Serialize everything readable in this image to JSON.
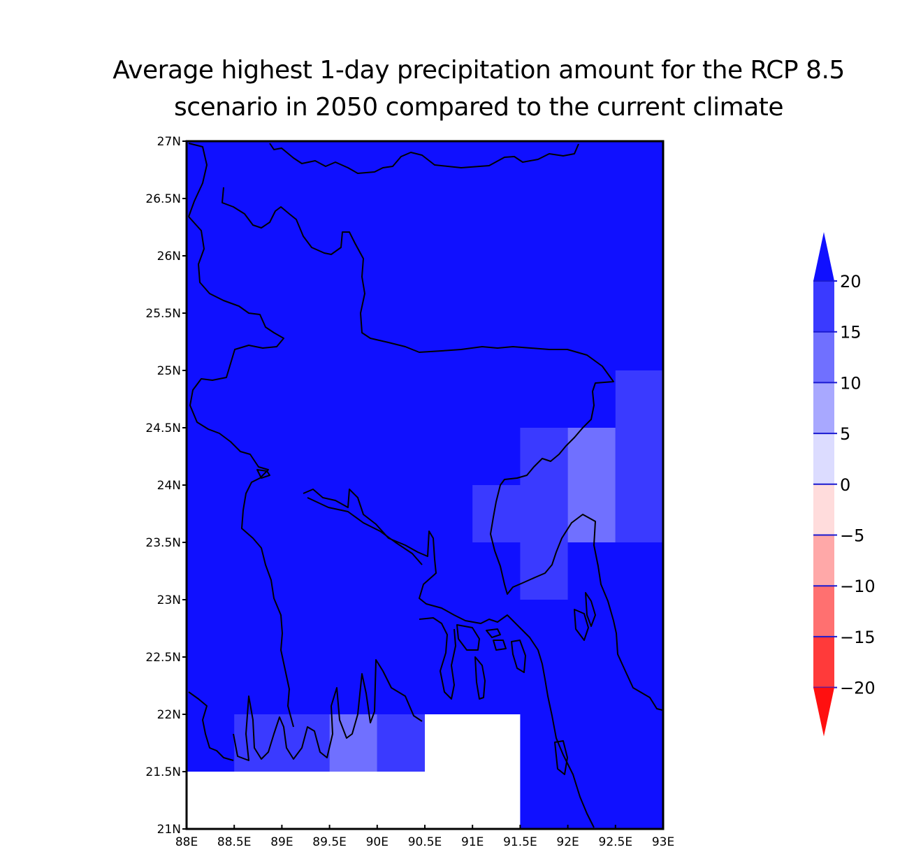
{
  "title": {
    "line1": "Average highest 1-day precipitation amount for the RCP 8.5",
    "line2": "scenario in 2050 compared to the current climate"
  },
  "map": {
    "lon_range": [
      88,
      93
    ],
    "lat_range": [
      21,
      27
    ],
    "x_ticks": [
      {
        "value": 88,
        "label": "88E"
      },
      {
        "value": 88.5,
        "label": "88.5E"
      },
      {
        "value": 89,
        "label": "89E"
      },
      {
        "value": 89.5,
        "label": "89.5E"
      },
      {
        "value": 90,
        "label": "90E"
      },
      {
        "value": 90.5,
        "label": "90.5E"
      },
      {
        "value": 91,
        "label": "91E"
      },
      {
        "value": 91.5,
        "label": "91.5E"
      },
      {
        "value": 92,
        "label": "92E"
      },
      {
        "value": 92.5,
        "label": "92.5E"
      },
      {
        "value": 93,
        "label": "93E"
      }
    ],
    "y_ticks": [
      {
        "value": 21,
        "label": "21N"
      },
      {
        "value": 21.5,
        "label": "21.5N"
      },
      {
        "value": 22,
        "label": "22N"
      },
      {
        "value": 22.5,
        "label": "22.5N"
      },
      {
        "value": 23,
        "label": "23N"
      },
      {
        "value": 23.5,
        "label": "23.5N"
      },
      {
        "value": 24,
        "label": "24N"
      },
      {
        "value": 24.5,
        "label": "24.5N"
      },
      {
        "value": 25,
        "label": "25N"
      },
      {
        "value": 25.5,
        "label": "25.5N"
      },
      {
        "value": 26,
        "label": "26N"
      },
      {
        "value": 26.5,
        "label": "26.5N"
      },
      {
        "value": 27,
        "label": "27N"
      }
    ],
    "background_class": "above-20",
    "cells": [
      {
        "lon": [
          88.5,
          89.5
        ],
        "lat": [
          21.5,
          22
        ],
        "class": "15-20"
      },
      {
        "lon": [
          89.5,
          90
        ],
        "lat": [
          21.5,
          22
        ],
        "class": "10-15"
      },
      {
        "lon": [
          90,
          90.5
        ],
        "lat": [
          21.5,
          22
        ],
        "class": "15-20"
      },
      {
        "lon": [
          88,
          90.5
        ],
        "lat": [
          21,
          21.5
        ],
        "class": "missing"
      },
      {
        "lon": [
          90.5,
          91.5
        ],
        "lat": [
          21,
          22
        ],
        "class": "missing"
      },
      {
        "lon": [
          91,
          92
        ],
        "lat": [
          23.5,
          24
        ],
        "class": "15-20"
      },
      {
        "lon": [
          91.5,
          92
        ],
        "lat": [
          23,
          23.5
        ],
        "class": "15-20"
      },
      {
        "lon": [
          91.5,
          92
        ],
        "lat": [
          24,
          24.5
        ],
        "class": "15-20"
      },
      {
        "lon": [
          92,
          92.5
        ],
        "lat": [
          23.5,
          24.5
        ],
        "class": "10-15"
      },
      {
        "lon": [
          92.5,
          93
        ],
        "lat": [
          23.5,
          25
        ],
        "class": "15-20"
      }
    ]
  },
  "legend": {
    "levels": [
      {
        "label": "20",
        "color": "#1010ff"
      },
      {
        "label": "15",
        "color": "#3a3aff"
      },
      {
        "label": "10",
        "color": "#7070ff"
      },
      {
        "label": "5",
        "color": "#a8a8ff"
      },
      {
        "label": "0",
        "color": "#dcdcff"
      },
      {
        "label": "−5",
        "color": "#ffdcdc"
      },
      {
        "label": "−10",
        "color": "#ffa8a8"
      },
      {
        "label": "−15",
        "color": "#ff7070"
      },
      {
        "label": "−20",
        "color": "#ff3a3a"
      }
    ],
    "top_arrow_color": "#1010ff",
    "bottom_arrow_color": "#ff1010"
  },
  "colors": {
    "above-20": "#1010ff",
    "15-20": "#3a3aff",
    "10-15": "#7070ff",
    "missing": "#ffffff"
  }
}
